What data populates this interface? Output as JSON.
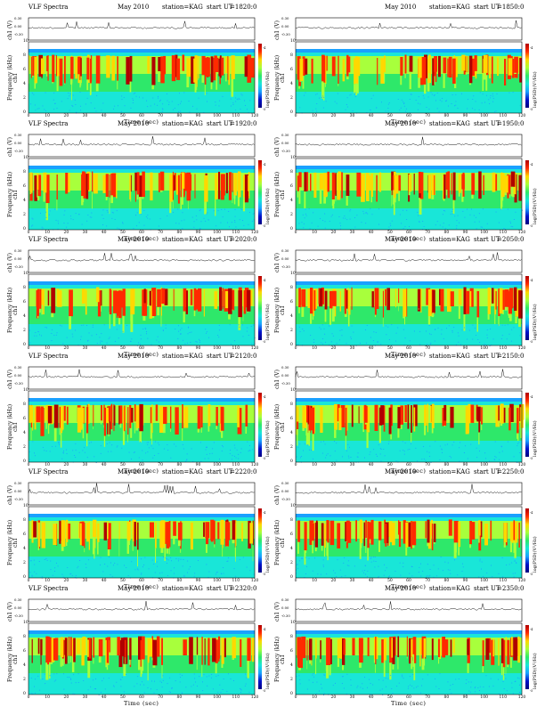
{
  "chart_data": {
    "type": "heatmap",
    "panels": [
      {
        "title": "VLF Spectra",
        "date": "May 2010",
        "station": "station=KAG",
        "start_label": "start UT",
        "start": "=1820:0",
        "pos": "left",
        "row": 0
      },
      {
        "title": "",
        "date": "May 2010",
        "station": "station=KAG",
        "start_label": "start UT",
        "start": "=1850:0",
        "pos": "right",
        "row": 0
      },
      {
        "title": "VLF Spectra",
        "date": "May 2010",
        "station": "station=KAG",
        "start_label": "start UT",
        "start": "=1920:0",
        "pos": "left",
        "row": 1
      },
      {
        "title": "",
        "date": "May 2010",
        "station": "station=KAG",
        "start_label": "start UT",
        "start": "=1950:0",
        "pos": "right",
        "row": 1
      },
      {
        "title": "VLF Spectra",
        "date": "May 2010",
        "station": "station=KAG",
        "start_label": "start UT",
        "start": "=2020:0",
        "pos": "left",
        "row": 2
      },
      {
        "title": "",
        "date": "May 2010",
        "station": "station=KAG",
        "start_label": "start UT",
        "start": "=2050:0",
        "pos": "right",
        "row": 2
      },
      {
        "title": "VLF Spectra",
        "date": "May 2010",
        "station": "station=KAG",
        "start_label": "start UT",
        "start": "=2120:0",
        "pos": "left",
        "row": 3
      },
      {
        "title": "",
        "date": "May 2010",
        "station": "station=KAG",
        "start_label": "start UT",
        "start": "=2150:0",
        "pos": "right",
        "row": 3
      },
      {
        "title": "VLF Spectra",
        "date": "May 2010",
        "station": "station=KAG",
        "start_label": "start UT",
        "start": "=2220:0",
        "pos": "left",
        "row": 4
      },
      {
        "title": "",
        "date": "May 2010",
        "station": "station=KAG",
        "start_label": "start UT",
        "start": "=2250:0",
        "pos": "right",
        "row": 4
      },
      {
        "title": "VLF Spectra",
        "date": "May 2010",
        "station": "station=KAG",
        "start_label": "start UT",
        "start": "=2320:0",
        "pos": "left",
        "row": 5
      },
      {
        "title": "",
        "date": "May 2010",
        "station": "station=KAG",
        "start_label": "start UT",
        "start": "=2350:0",
        "pos": "right",
        "row": 5
      }
    ],
    "waveform_ylabel": "ch1 (V)",
    "waveform_ticks": [
      "0.30",
      "0.00",
      "-0.30"
    ],
    "channel_label": "ch1",
    "ylabel": "Frequency (kHz)",
    "y_ticks": [
      "0",
      "2",
      "4",
      "6",
      "8",
      "10"
    ],
    "ylim": [
      0,
      10
    ],
    "xlabel": "Time (sec)",
    "x_ticks": [
      "0",
      "10",
      "20",
      "30",
      "40",
      "50",
      "60",
      "70",
      "80",
      "90",
      "100",
      "110",
      "120"
    ],
    "xlim": [
      0,
      120
    ],
    "colorbar_label": "log(PSD)(V²/Hz)",
    "colorbar_ticks": [
      "-4",
      "-5"
    ],
    "colormap": [
      "#b00000",
      "#ff2a00",
      "#ffd800",
      "#a8ff3c",
      "#2ee86a",
      "#19e6d8",
      "#1aa0ff",
      "#0010c8"
    ]
  }
}
